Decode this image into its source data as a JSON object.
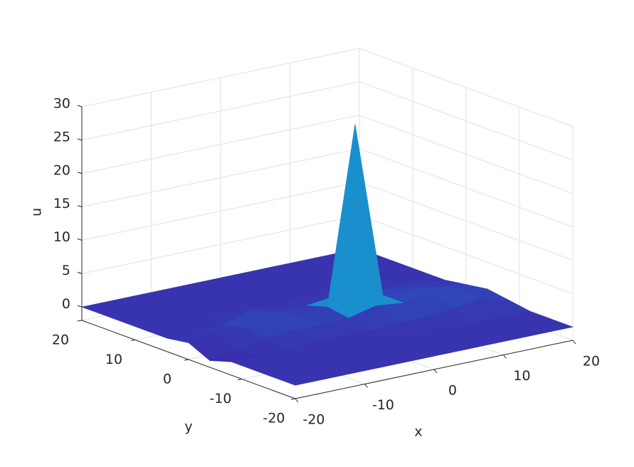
{
  "chart_data": {
    "type": "surface",
    "x_label": "x",
    "y_label": "y",
    "z_label": "u",
    "x": [
      -20,
      -16,
      -12,
      -8,
      -4,
      0,
      4,
      8,
      12,
      16,
      20
    ],
    "y": [
      -20,
      -16,
      -12,
      -8,
      -4,
      0,
      4,
      8,
      12,
      16,
      20
    ],
    "z": [
      [
        0,
        0,
        0,
        0,
        0,
        0,
        0,
        0,
        0,
        0,
        0
      ],
      [
        0,
        0,
        0,
        0,
        0,
        0,
        0,
        0,
        0,
        0,
        0
      ],
      [
        0,
        0,
        0,
        0,
        0,
        0,
        0,
        0,
        0,
        0,
        0
      ],
      [
        0,
        0,
        0,
        0.3,
        0.3,
        0.3,
        0.5,
        0.5,
        1,
        1.5,
        0.5
      ],
      [
        -1,
        -0.5,
        0.5,
        1,
        0.8,
        1,
        2,
        1.5,
        2,
        2,
        1
      ],
      [
        0.5,
        0.8,
        1,
        2.5,
        1,
        1.5,
        28,
        1.5,
        1.5,
        1,
        0.5
      ],
      [
        0,
        0,
        0.3,
        1.5,
        0.5,
        0.5,
        1,
        0.5,
        0.5,
        0.5,
        0
      ],
      [
        0,
        0,
        0,
        0,
        0,
        0,
        0,
        0,
        0,
        0,
        0
      ],
      [
        0,
        0,
        0,
        0,
        0,
        0,
        0,
        0,
        0,
        0,
        0
      ],
      [
        0,
        0,
        0,
        0,
        0,
        0,
        0,
        0,
        0,
        0,
        0
      ],
      [
        0,
        0,
        0,
        0,
        0,
        0,
        0,
        0,
        0,
        0,
        0
      ]
    ],
    "xlim": [
      -20,
      20
    ],
    "ylim": [
      -20,
      20
    ],
    "zlim": [
      -2,
      30
    ],
    "xticks": [
      -20,
      -10,
      0,
      10,
      20
    ],
    "yticks": [
      -20,
      -10,
      0,
      10,
      20
    ],
    "zticks": [
      0,
      5,
      10,
      15,
      20,
      25,
      30
    ],
    "grid": true,
    "colormap": [
      "#3e26a8",
      "#1481d6",
      "#26b7b4",
      "#a5be4d",
      "#f9fb0e"
    ]
  }
}
